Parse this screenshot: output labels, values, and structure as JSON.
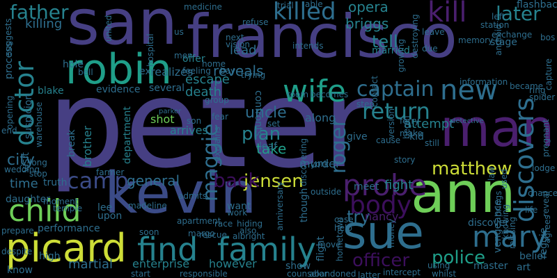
{
  "palette": {
    "bg": "#000000",
    "navy": "#3b4b87",
    "indigo": "#463f83",
    "purple": "#4a1f6e",
    "deep": "#3c0f5c",
    "blue": "#355f8d",
    "steel": "#2e6e8e",
    "teal": "#26828e",
    "sea": "#1f9e89",
    "green": "#35b779",
    "lime": "#6ece58",
    "yellow": "#cddd37"
  },
  "words": [
    "peter",
    "san",
    "francisco",
    "kevin",
    "ann",
    "robin",
    "man",
    "sue",
    "picard",
    "find",
    "family",
    "mary",
    "child",
    "probe",
    "body",
    "killed",
    "kill",
    "doctor",
    "wife",
    "new",
    "discovers",
    "captain",
    "return",
    "matthew",
    "father",
    "later",
    "opera",
    "briggs",
    "tell",
    "married",
    "killing",
    "camp",
    "maggie",
    "jensen",
    "back",
    "roger",
    "plan",
    "reveals",
    "uncle",
    "city",
    "police",
    "officer",
    "enterprise",
    "however",
    "martial",
    "general",
    "time",
    "performance",
    "lead",
    "evidence",
    "several",
    "escape",
    "death",
    "try",
    "nancy",
    "meet",
    "fight",
    "along",
    "murder",
    "york",
    "shot",
    "take",
    "son",
    "arrives",
    "department",
    "break",
    "brother",
    "truth",
    "lee",
    "upon",
    "high",
    "know",
    "show",
    "discover",
    "master",
    "art",
    "belief",
    "help",
    "flight",
    "attempt",
    "kid",
    "give",
    "cause",
    "still",
    "leaf",
    "stage",
    "exchange",
    "due",
    "realizes",
    "ex",
    "bell",
    "hole",
    "us",
    "offer",
    "bay",
    "blake",
    "visit",
    "suspicion",
    "process",
    "opening",
    "daughter",
    "want",
    "hiding",
    "also",
    "though",
    "anniversary",
    "reggie",
    "vengeance",
    "life",
    "missing",
    "knowing",
    "used",
    "lodge",
    "reveal",
    "agrees",
    "brings",
    "chance",
    "ring",
    "spider",
    "capture",
    "became",
    "pregnant",
    "bos",
    "android",
    "flashback",
    "left",
    "station",
    "memory",
    "leave",
    "destroying",
    "growing",
    "refuse",
    "trial",
    "able",
    "next",
    "vision",
    "men",
    "united",
    "suggests",
    "prepare",
    "despite",
    "wedding",
    "long",
    "stop",
    "end",
    "detective",
    "fear",
    "parker",
    "hospital",
    "home",
    "feeling",
    "confronts",
    "room",
    "becomes",
    "step",
    "set",
    "group",
    "explains",
    "admits",
    "madeline",
    "temple",
    "soon",
    "apartment",
    "margo",
    "race",
    "work",
    "rescue",
    "albright",
    "responsible",
    "start",
    "counselor",
    "hometown",
    "abandoned",
    "latter",
    "money",
    "intercept",
    "using",
    "whilst",
    "story",
    "begin",
    "version",
    "contact",
    "outside",
    "discovering",
    "make",
    "information",
    "law",
    "farmer",
    "moment",
    "medicine",
    "trying",
    "intends",
    "move",
    "case",
    "ferry",
    "warehouse"
  ]
}
